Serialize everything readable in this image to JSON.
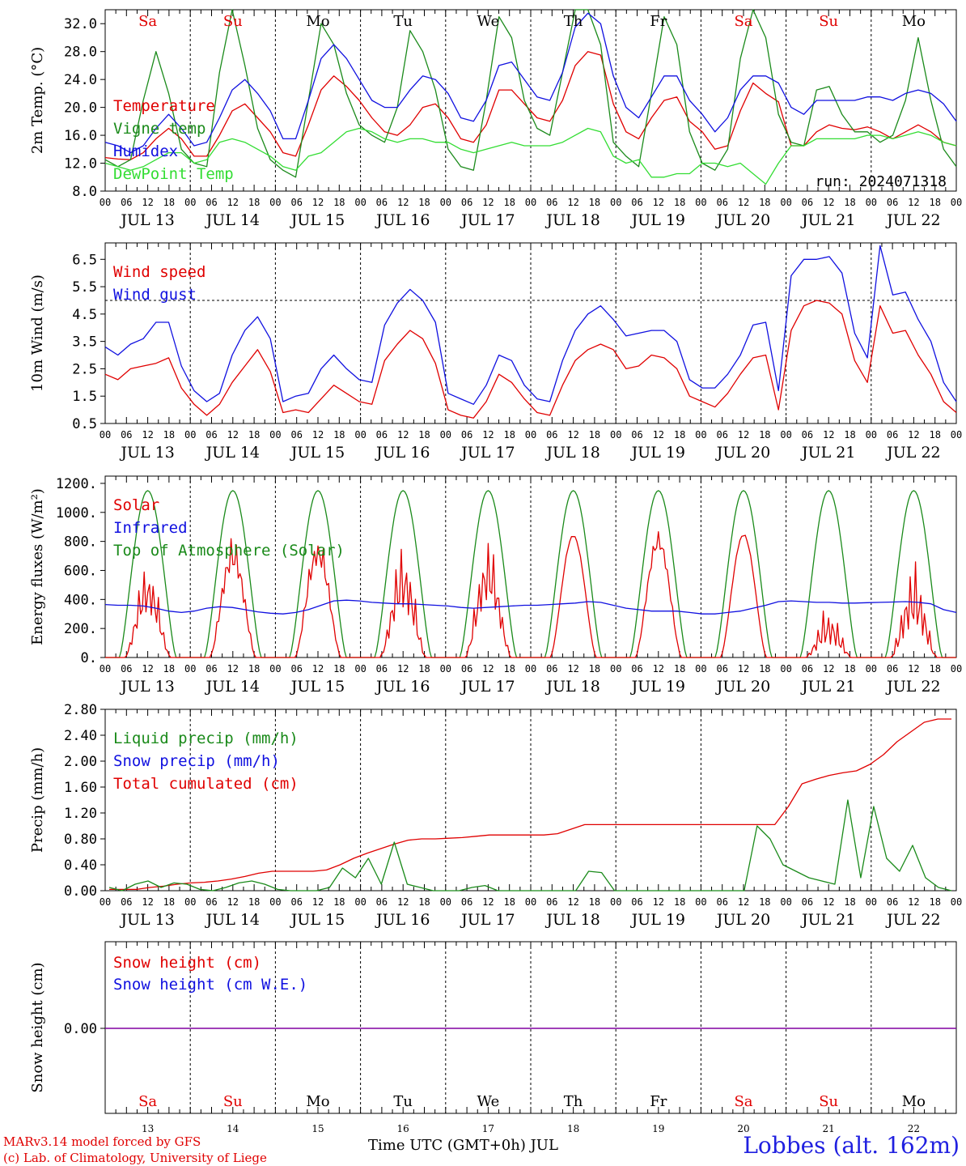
{
  "run_label": "run: 2024071318",
  "location": "Lobbes (alt. 162m)",
  "credits": [
    "MARv3.14 model forced by GFS",
    "(c) Lab. of Climatology, University of Liege"
  ],
  "time_axis_title": "Time UTC (GMT+0h) JUL",
  "dates": [
    "JUL 13",
    "JUL 14",
    "JUL 15",
    "JUL 16",
    "JUL 17",
    "JUL 18",
    "JUL 19",
    "JUL 20",
    "JUL 21",
    "JUL 22"
  ],
  "date_numbers": [
    "13",
    "14",
    "15",
    "16",
    "17",
    "18",
    "19",
    "20",
    "21",
    "22"
  ],
  "weekdays": [
    "Sa",
    "Su",
    "Mo",
    "Tu",
    "We",
    "Th",
    "Fr",
    "Sa",
    "Su",
    "Mo"
  ],
  "weekday_colors": [
    "#e00000",
    "#e00000",
    "#000000",
    "#000000",
    "#000000",
    "#000000",
    "#000000",
    "#e00000",
    "#e00000",
    "#000000"
  ],
  "hour_ticks": [
    "00",
    "06",
    "12",
    "18"
  ],
  "colors": {
    "red": "#e00000",
    "green": "#1a8a1a",
    "blue": "#1010e0",
    "lightgreen": "#33dd33",
    "purple": "#8000a0"
  },
  "chart_data": [
    {
      "type": "line",
      "ylabel": "2m Temp. (°C)",
      "ylim": [
        8,
        34
      ],
      "yticks": [
        "8.0",
        "12.0",
        "16.0",
        "20.0",
        "24.0",
        "28.0",
        "32.0"
      ],
      "legend": [
        "Temperature",
        "Vigne temp",
        "Humidex",
        "DewPoint Temp"
      ],
      "series": [
        {
          "name": "Temperature",
          "color": "red",
          "values": [
            12.8,
            12.6,
            12.5,
            13.5,
            15.5,
            17.0,
            15.5,
            13.0,
            13.0,
            16.0,
            19.5,
            20.5,
            18.5,
            16.5,
            13.5,
            13.0,
            17.5,
            22.5,
            24.5,
            23.0,
            21.0,
            18.5,
            16.5,
            16.0,
            17.5,
            20.0,
            20.5,
            18.5,
            15.5,
            15.0,
            17.5,
            22.5,
            22.5,
            20.5,
            18.5,
            18.0,
            21.0,
            26.0,
            28.0,
            27.5,
            20.5,
            16.5,
            15.5,
            18.5,
            21.0,
            21.5,
            18.0,
            16.5,
            14.0,
            14.5,
            19.5,
            23.5,
            22.0,
            20.8,
            14.5,
            14.5,
            16.5,
            17.5,
            17.0,
            16.8,
            17.2,
            16.5,
            15.5,
            16.5,
            17.5,
            16.5,
            15.0,
            14.5
          ]
        },
        {
          "name": "Vigne temp",
          "color": "green",
          "values": [
            12.5,
            11.5,
            12.5,
            21.0,
            28.0,
            22.0,
            14.0,
            12.0,
            11.5,
            25.0,
            35.0,
            26.0,
            17.0,
            12.5,
            11.0,
            10.0,
            21.0,
            32.0,
            29.0,
            22.0,
            17.5,
            16.0,
            15.0,
            20.0,
            31.0,
            28.0,
            22.5,
            14.0,
            11.5,
            11.0,
            21.0,
            33.0,
            30.0,
            21.0,
            17.0,
            16.0,
            25.0,
            34.0,
            34.0,
            29.0,
            15.0,
            13.0,
            11.5,
            22.0,
            33.0,
            29.0,
            16.5,
            12.0,
            11.0,
            14.0,
            27.0,
            35.0,
            30.0,
            19.0,
            15.0,
            14.5,
            22.5,
            23.0,
            19.0,
            16.5,
            16.5,
            15.0,
            16.0,
            21.0,
            30.0,
            21.0,
            14.0,
            11.5
          ]
        },
        {
          "name": "Humidex",
          "color": "blue",
          "values": [
            15.0,
            14.5,
            13.5,
            14.5,
            17.0,
            19.0,
            17.0,
            14.5,
            15.0,
            18.5,
            22.5,
            24.0,
            22.0,
            19.5,
            15.5,
            15.5,
            21.0,
            27.0,
            29.0,
            27.0,
            24.0,
            21.0,
            20.0,
            20.0,
            22.5,
            24.5,
            24.0,
            22.0,
            18.5,
            18.0,
            21.0,
            26.0,
            26.5,
            24.0,
            21.5,
            21.0,
            25.0,
            31.5,
            33.5,
            32.0,
            24.5,
            20.0,
            18.5,
            21.5,
            24.5,
            24.5,
            21.0,
            19.0,
            16.5,
            18.5,
            22.5,
            24.5,
            24.5,
            23.5,
            20.0,
            19.0,
            21.0,
            21.0,
            21.0,
            21.0,
            21.5,
            21.5,
            21.0,
            22.0,
            22.5,
            22.0,
            20.5,
            18.0
          ]
        },
        {
          "name": "DewPoint Temp",
          "color": "lightgreen",
          "values": [
            12.0,
            11.5,
            11.0,
            11.5,
            12.5,
            13.5,
            13.5,
            12.0,
            12.5,
            15.0,
            15.5,
            15.0,
            14.0,
            13.0,
            11.5,
            11.0,
            13.0,
            13.5,
            15.0,
            16.5,
            17.0,
            16.5,
            15.5,
            15.0,
            15.5,
            15.5,
            15.0,
            15.0,
            14.0,
            13.5,
            14.0,
            14.5,
            15.0,
            14.5,
            14.5,
            14.5,
            15.0,
            16.0,
            17.0,
            16.5,
            13.0,
            12.0,
            12.5,
            10.0,
            10.0,
            10.5,
            10.5,
            12.0,
            12.0,
            11.5,
            12.0,
            10.5,
            9.0,
            12.0,
            14.5,
            14.5,
            15.5,
            15.5,
            15.5,
            15.5,
            16.0,
            16.0,
            15.5,
            16.0,
            16.5,
            16.0,
            15.0,
            14.5
          ]
        }
      ]
    },
    {
      "type": "line",
      "ylabel": "10m Wind (m/s)",
      "ylim": [
        0.5,
        7.1
      ],
      "yticks": [
        "0.5",
        "1.5",
        "2.5",
        "3.5",
        "4.5",
        "5.5",
        "6.5"
      ],
      "ref_line": 5.0,
      "legend": [
        "Wind speed",
        "Wind gust"
      ],
      "series": [
        {
          "name": "Wind speed",
          "color": "red",
          "values": [
            2.3,
            2.1,
            2.5,
            2.6,
            2.7,
            2.9,
            1.8,
            1.2,
            0.8,
            1.2,
            2.0,
            2.6,
            3.2,
            2.4,
            0.9,
            1.0,
            0.9,
            1.4,
            1.9,
            1.6,
            1.3,
            1.2,
            2.8,
            3.4,
            3.9,
            3.6,
            2.7,
            1.0,
            0.8,
            0.7,
            1.3,
            2.3,
            2.0,
            1.4,
            0.9,
            0.8,
            1.9,
            2.8,
            3.2,
            3.4,
            3.2,
            2.5,
            2.6,
            3.0,
            2.9,
            2.5,
            1.5,
            1.3,
            1.1,
            1.6,
            2.3,
            2.9,
            3.0,
            1.0,
            3.9,
            4.8,
            5.0,
            4.9,
            4.5,
            2.8,
            2.0,
            4.8,
            3.8,
            3.9,
            3.0,
            2.3,
            1.3,
            0.9
          ]
        },
        {
          "name": "Wind gust",
          "color": "blue",
          "values": [
            3.3,
            3.0,
            3.4,
            3.6,
            4.2,
            4.2,
            2.6,
            1.7,
            1.3,
            1.6,
            3.0,
            3.9,
            4.4,
            3.6,
            1.3,
            1.5,
            1.6,
            2.5,
            3.0,
            2.5,
            2.1,
            2.0,
            4.1,
            4.9,
            5.4,
            5.0,
            4.2,
            1.6,
            1.4,
            1.2,
            1.9,
            3.0,
            2.8,
            1.9,
            1.4,
            1.3,
            2.8,
            3.9,
            4.5,
            4.8,
            4.3,
            3.7,
            3.8,
            3.9,
            3.9,
            3.5,
            2.1,
            1.8,
            1.8,
            2.3,
            3.0,
            4.1,
            4.2,
            1.7,
            5.9,
            6.5,
            6.5,
            6.6,
            6.0,
            3.8,
            2.9,
            7.0,
            5.2,
            5.3,
            4.3,
            3.5,
            2.0,
            1.3
          ]
        }
      ]
    },
    {
      "type": "line",
      "ylabel": "Energy fluxes (W/m²)",
      "ylim": [
        0,
        1250
      ],
      "yticks": [
        "0.",
        "200.",
        "400.",
        "600.",
        "800.",
        "1000.",
        "1200."
      ],
      "legend": [
        "Solar",
        "Infrared",
        "Top of Atmosphere (Solar)"
      ],
      "series": [
        {
          "name": "Solar",
          "color": "red",
          "peaks": [
            680,
            860,
            855,
            820,
            860,
            850,
            880,
            855,
            370,
            700
          ],
          "cloudiness": [
            0.55,
            0.3,
            0.25,
            0.6,
            0.55,
            0.02,
            0.15,
            0.02,
            0.75,
            0.7
          ]
        },
        {
          "name": "Infrared",
          "color": "blue",
          "values": [
            365,
            360,
            360,
            355,
            340,
            320,
            310,
            320,
            340,
            350,
            345,
            330,
            315,
            305,
            300,
            310,
            330,
            360,
            390,
            395,
            390,
            380,
            375,
            370,
            370,
            365,
            360,
            355,
            345,
            340,
            345,
            350,
            355,
            360,
            360,
            365,
            370,
            375,
            385,
            380,
            360,
            340,
            330,
            320,
            320,
            320,
            310,
            300,
            300,
            310,
            320,
            340,
            360,
            385,
            390,
            385,
            380,
            380,
            375,
            375,
            378,
            380,
            382,
            385,
            380,
            370,
            330,
            310
          ]
        },
        {
          "name": "Top of Atmosphere (Solar)",
          "color": "green",
          "peak": 1150
        }
      ]
    },
    {
      "type": "line",
      "ylabel": "Precip (mm/h)",
      "ylim": [
        0,
        2.8
      ],
      "yticks": [
        "0.00",
        "0.40",
        "0.80",
        "1.20",
        "1.60",
        "2.00",
        "2.40",
        "2.80"
      ],
      "legend": [
        "Liquid precip (mm/h)",
        "Snow precip (mm/h)",
        "Total cumulated (cm)"
      ],
      "series": [
        {
          "name": "Total cumulated (cm)",
          "color": "red",
          "values": [
            0.02,
            0.02,
            0.02,
            0.05,
            0.07,
            0.1,
            0.12,
            0.13,
            0.15,
            0.18,
            0.22,
            0.27,
            0.3,
            0.3,
            0.3,
            0.3,
            0.32,
            0.4,
            0.5,
            0.58,
            0.65,
            0.72,
            0.78,
            0.8,
            0.8,
            0.81,
            0.82,
            0.84,
            0.86,
            0.86,
            0.86,
            0.86,
            0.86,
            0.88,
            0.95,
            1.02,
            1.02,
            1.02,
            1.02,
            1.02,
            1.02,
            1.02,
            1.02,
            1.02,
            1.02,
            1.02,
            1.02,
            1.02,
            1.02,
            1.02,
            1.3,
            1.65,
            1.72,
            1.78,
            1.82,
            1.85,
            1.95,
            2.1,
            2.3,
            2.45,
            2.6,
            2.65,
            2.65
          ]
        },
        {
          "name": "Liquid precip (mm/h)",
          "color": "green",
          "values": [
            0.05,
            0,
            0.1,
            0.15,
            0.05,
            0.12,
            0.1,
            0.02,
            0,
            0.05,
            0.12,
            0.15,
            0.1,
            0.02,
            0,
            0,
            0,
            0.05,
            0.35,
            0.2,
            0.5,
            0.1,
            0.75,
            0.1,
            0.05,
            0,
            0,
            0,
            0.05,
            0.08,
            0,
            0,
            0,
            0,
            0,
            0,
            0,
            0.3,
            0.28,
            0,
            0,
            0,
            0,
            0,
            0,
            0,
            0,
            0,
            0,
            0,
            1.0,
            0.8,
            0.4,
            0.3,
            0.2,
            0.15,
            0.1,
            1.4,
            0.2,
            1.3,
            0.5,
            0.3,
            0.7,
            0.2,
            0.05,
            0
          ]
        }
      ]
    },
    {
      "type": "line",
      "ylabel": "Snow height (cm)",
      "yticks": [
        "0.00"
      ],
      "legend": [
        "Snow height (cm)",
        "Snow height (cm W.E.)"
      ],
      "series": [
        {
          "name": "Snow height (cm)",
          "color": "red",
          "constant": 0
        },
        {
          "name": "Snow height (cm W.E.)",
          "color": "blue",
          "constant": 0
        }
      ]
    }
  ]
}
